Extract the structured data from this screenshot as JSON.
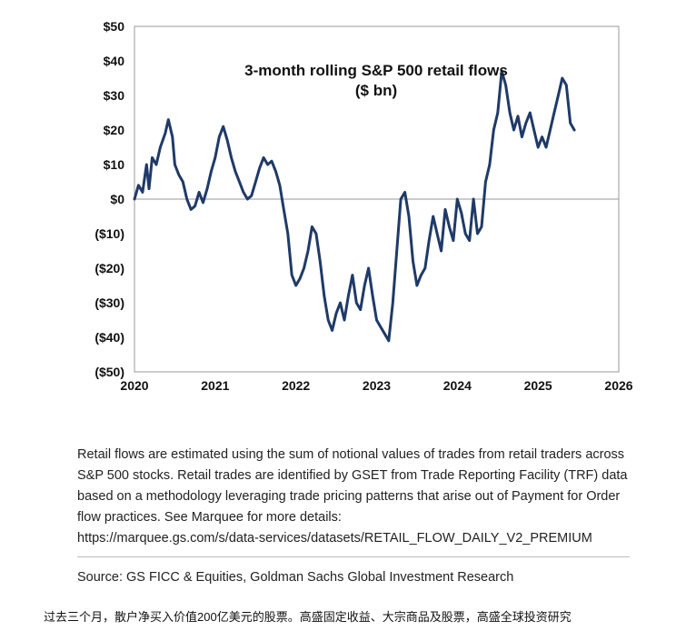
{
  "chart_data": {
    "type": "line",
    "title": "3-month rolling S&P 500 retail flows",
    "subtitle": "($ bn)",
    "xlabel": "",
    "ylabel": "",
    "xlim": [
      2020,
      2026
    ],
    "ylim": [
      -50,
      50
    ],
    "x_ticks": [
      "2020",
      "2021",
      "2022",
      "2023",
      "2024",
      "2025",
      "2026"
    ],
    "y_ticks": [
      "$50",
      "$40",
      "$30",
      "$20",
      "$10",
      "$0",
      "($10)",
      "($20)",
      "($30)",
      "($40)",
      "($50)"
    ],
    "grid": false,
    "legend": "none",
    "line_color": "#1f3a68",
    "series": [
      {
        "x": [
          2020.0,
          2020.05,
          2020.1,
          2020.15,
          2020.18,
          2020.22,
          2020.27,
          2020.32,
          2020.38,
          2020.42,
          2020.47,
          2020.5,
          2020.55,
          2020.6,
          2020.65,
          2020.7,
          2020.75,
          2020.8,
          2020.85,
          2020.9,
          2020.95,
          2021.0,
          2021.05,
          2021.1,
          2021.15,
          2021.2,
          2021.25,
          2021.3,
          2021.35,
          2021.4,
          2021.45,
          2021.5,
          2021.55,
          2021.6,
          2021.65,
          2021.7,
          2021.75,
          2021.8,
          2021.85,
          2021.9,
          2021.95,
          2022.0,
          2022.05,
          2022.1,
          2022.15,
          2022.2,
          2022.25,
          2022.3,
          2022.35,
          2022.4,
          2022.45,
          2022.5,
          2022.55,
          2022.6,
          2022.65,
          2022.7,
          2022.75,
          2022.8,
          2022.85,
          2022.9,
          2022.95,
          2023.0,
          2023.05,
          2023.1,
          2023.15,
          2023.2,
          2023.25,
          2023.3,
          2023.35,
          2023.4,
          2023.45,
          2023.5,
          2023.55,
          2023.6,
          2023.65,
          2023.7,
          2023.75,
          2023.8,
          2023.85,
          2023.9,
          2023.95,
          2024.0,
          2024.05,
          2024.1,
          2024.15,
          2024.2,
          2024.25,
          2024.3,
          2024.35,
          2024.4,
          2024.45,
          2024.5,
          2024.55,
          2024.6,
          2024.65,
          2024.7,
          2024.75,
          2024.8,
          2024.85,
          2024.9,
          2024.95,
          2025.0,
          2025.05,
          2025.1,
          2025.15,
          2025.2,
          2025.25,
          2025.3,
          2025.35,
          2025.4,
          2025.45
        ],
        "y": [
          0,
          4,
          2,
          10,
          3,
          12,
          10,
          15,
          19,
          23,
          18,
          10,
          7,
          5,
          0,
          -3,
          -2,
          2,
          -1,
          3,
          8,
          12,
          18,
          21,
          17,
          12,
          8,
          5,
          2,
          0,
          1,
          5,
          9,
          12,
          10,
          11,
          8,
          4,
          -3,
          -10,
          -22,
          -25,
          -23,
          -20,
          -15,
          -8,
          -10,
          -18,
          -28,
          -35,
          -38,
          -33,
          -30,
          -35,
          -28,
          -22,
          -30,
          -32,
          -25,
          -20,
          -28,
          -35,
          -37,
          -39,
          -41,
          -30,
          -15,
          0,
          2,
          -5,
          -18,
          -25,
          -22,
          -20,
          -12,
          -5,
          -10,
          -15,
          -3,
          -8,
          -12,
          0,
          -4,
          -10,
          -12,
          0,
          -10,
          -8,
          5,
          10,
          20,
          25,
          37,
          33,
          25,
          20,
          24,
          18,
          22,
          25,
          20,
          15,
          18,
          15,
          20,
          25,
          30,
          35,
          33,
          22,
          20
        ]
      }
    ]
  },
  "notes": {
    "line1": "Retail flows are estimated using the sum of notional values of trades from retail traders across",
    "line2": "S&P 500 stocks. Retail trades are identified by GSET from Trade Reporting Facility (TRF) data",
    "line3": "based on a methodology leveraging trade pricing patterns that arise out of Payment for Order",
    "line4": "flow practices. See Marquee for more details:",
    "line5": "https://marquee.gs.com/s/data-services/datasets/RETAIL_FLOW_DAILY_V2_PREMIUM"
  },
  "source": "Source: GS FICC & Equities, Goldman Sachs Global Investment Research",
  "caption": "过去三个月，散户净买入价值200亿美元的股票。高盛固定收益、大宗商品及股票，高盛全球投资研究"
}
